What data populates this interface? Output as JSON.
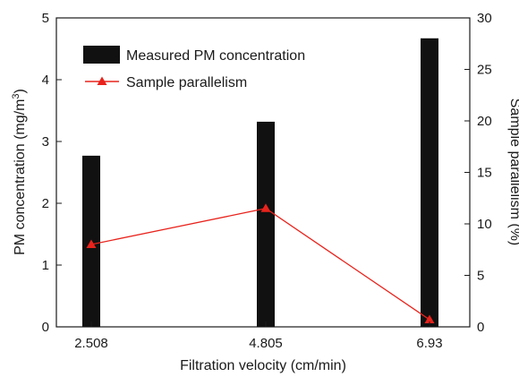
{
  "chart_data": {
    "type": "bar",
    "categories": [
      "2.508",
      "4.805",
      "6.93"
    ],
    "xlabel": "Filtration velocity (cm/min)",
    "ylabel": "PM concentration (mg/m",
    "ylabel_sup": "3",
    "ylabel_tail": ")",
    "y2label": "Sample parallelism (%)",
    "ylim": [
      0,
      5
    ],
    "y2lim": [
      0,
      30
    ],
    "yticks": [
      "0",
      "1",
      "2",
      "3",
      "4",
      "5"
    ],
    "y2ticks": [
      "0",
      "5",
      "10",
      "15",
      "20",
      "25",
      "30"
    ],
    "grid": false,
    "legend_position": "top-left",
    "series": [
      {
        "name": "Measured PM concentration",
        "type": "bar",
        "axis": "left",
        "values": [
          2.77,
          3.32,
          4.67
        ],
        "color": "#111111"
      },
      {
        "name": "Sample parallelism",
        "type": "line",
        "axis": "right",
        "marker": "triangle",
        "values": [
          8.0,
          11.5,
          0.7
        ],
        "color": "#e8231c"
      }
    ]
  }
}
